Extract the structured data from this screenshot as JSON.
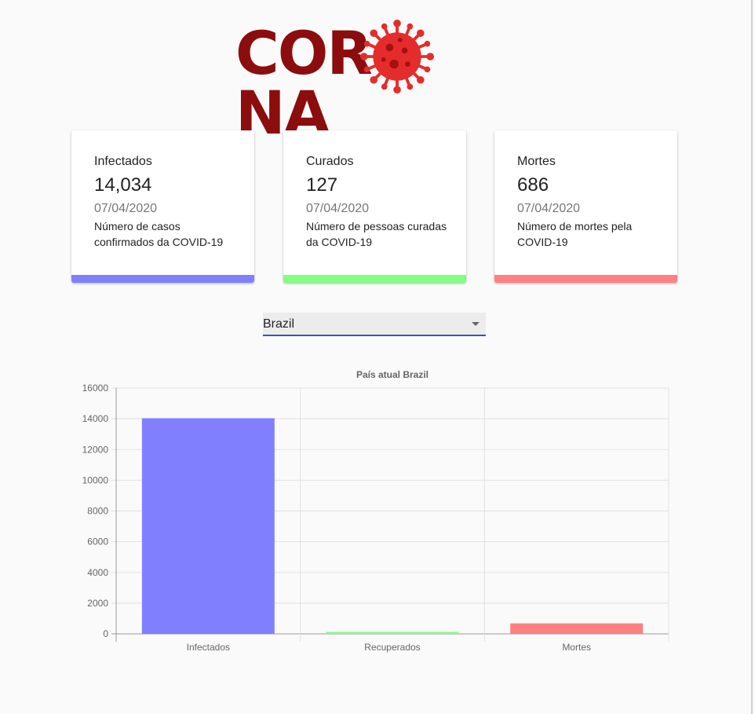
{
  "logo": {
    "text_before": "COR",
    "text_after": "NA"
  },
  "cards": [
    {
      "title": "Infectados",
      "value": "14,034",
      "date": "07/04/2020",
      "description": "Número de casos confirmados da COVID-19",
      "color": "#8080ff"
    },
    {
      "title": "Curados",
      "value": "127",
      "date": "07/04/2020",
      "description": "Número de pessoas curadas da COVID-19",
      "color": "#80ff80"
    },
    {
      "title": "Mortes",
      "value": "686",
      "date": "07/04/2020",
      "description": "Número de mortes pela COVID-19",
      "color": "#ff8080"
    }
  ],
  "country_select": {
    "value": "Brazil",
    "icon": "dropdown-arrow-icon"
  },
  "chart_data": {
    "type": "bar",
    "title": "País atual Brazil",
    "categories": [
      "Infectados",
      "Recuperados",
      "Mortes"
    ],
    "values": [
      14034,
      127,
      686
    ],
    "colors": [
      "#8080ff",
      "#80ff80",
      "#ff8080"
    ],
    "ylim": [
      0,
      16000
    ],
    "yticks": [
      "16000",
      "14000",
      "12000",
      "10000",
      "8000",
      "6000",
      "4000",
      "2000",
      "0"
    ],
    "grid": true,
    "legend": "none"
  }
}
